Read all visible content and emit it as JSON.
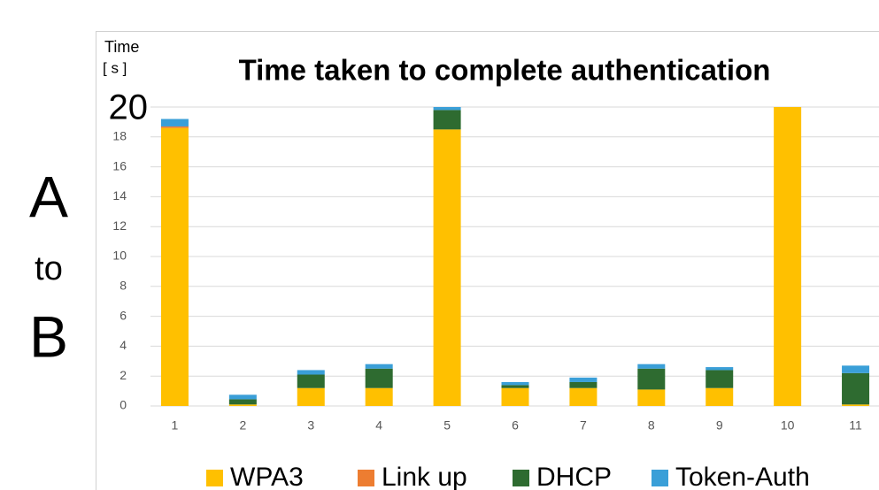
{
  "chart_data": {
    "type": "stacked_bar",
    "title": "Time taken to complete authentication",
    "y_label_lines": [
      "Time",
      "[ s ]"
    ],
    "side_label": [
      "A",
      "to",
      "B"
    ],
    "categories": [
      "1",
      "2",
      "3",
      "4",
      "5",
      "6",
      "7",
      "8",
      "9",
      "10",
      "11"
    ],
    "series": [
      {
        "name": "WPA3",
        "color": "#FFC000",
        "values": [
          18.6,
          0.1,
          1.2,
          1.2,
          18.5,
          1.2,
          1.2,
          1.1,
          1.2,
          20,
          0.1
        ]
      },
      {
        "name": "Link up",
        "color": "#ED7D31",
        "values": [
          0.1,
          0,
          0,
          0,
          0,
          0,
          0,
          0,
          0,
          0,
          0
        ]
      },
      {
        "name": "DHCP",
        "color": "#2E6B30",
        "values": [
          0,
          0.35,
          0.9,
          1.3,
          1.3,
          0.2,
          0.4,
          1.4,
          1.2,
          0,
          2.1
        ]
      },
      {
        "name": "Token-Auth",
        "color": "#3A9FD8",
        "values": [
          0.5,
          0.3,
          0.3,
          0.3,
          0.2,
          0.2,
          0.3,
          0.3,
          0.2,
          0,
          0.5
        ]
      }
    ],
    "ylim": [
      0,
      20
    ],
    "yticks": [
      0,
      2,
      4,
      6,
      8,
      10,
      12,
      14,
      16,
      18,
      20
    ],
    "grid": true,
    "legend": "bottom"
  }
}
